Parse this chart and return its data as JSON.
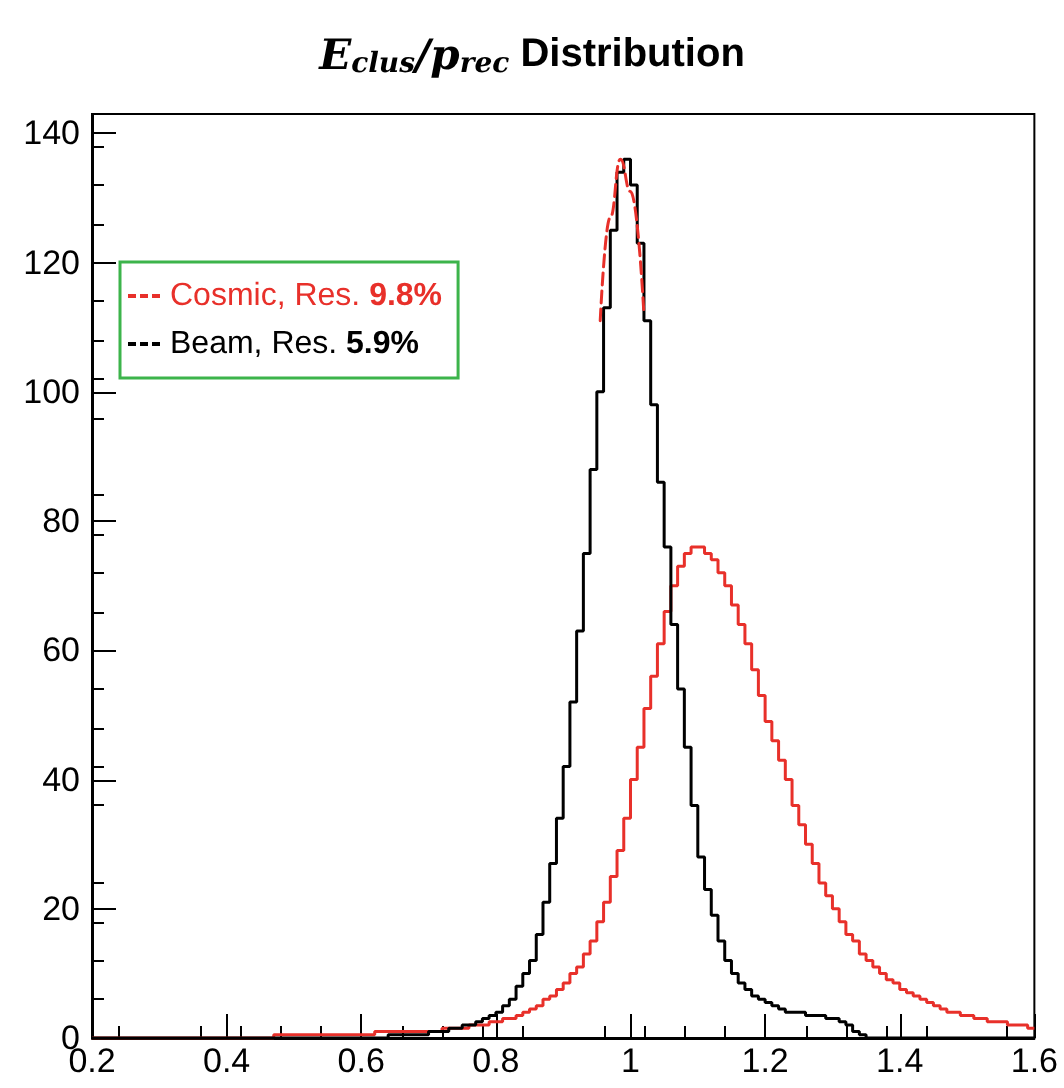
{
  "chart_data": {
    "type": "histogram",
    "title": "E$_{clus}$/p$_{rec}$ Distribution",
    "bins": [
      0.2,
      0.21,
      0.22,
      0.23,
      0.24,
      0.25,
      0.26,
      0.27,
      0.28,
      0.29,
      0.3,
      0.31,
      0.32,
      0.33,
      0.34,
      0.35,
      0.36,
      0.37,
      0.38,
      0.39,
      0.4,
      0.41,
      0.42,
      0.43,
      0.44,
      0.45,
      0.46,
      0.47,
      0.48,
      0.49,
      0.5,
      0.51,
      0.52,
      0.53,
      0.54,
      0.55,
      0.56,
      0.57,
      0.58,
      0.59,
      0.6,
      0.61,
      0.62,
      0.63,
      0.64,
      0.65,
      0.66,
      0.67,
      0.68,
      0.69,
      0.7,
      0.71,
      0.72,
      0.73,
      0.74,
      0.75,
      0.76,
      0.77,
      0.78,
      0.79,
      0.8,
      0.81,
      0.82,
      0.83,
      0.84,
      0.85,
      0.86,
      0.87,
      0.88,
      0.89,
      0.9,
      0.91,
      0.92,
      0.93,
      0.94,
      0.95,
      0.96,
      0.97,
      0.98,
      0.99,
      1.0,
      1.01,
      1.02,
      1.03,
      1.04,
      1.05,
      1.06,
      1.07,
      1.08,
      1.09,
      1.1,
      1.11,
      1.12,
      1.13,
      1.14,
      1.15,
      1.16,
      1.17,
      1.18,
      1.19,
      1.2,
      1.21,
      1.22,
      1.23,
      1.24,
      1.25,
      1.26,
      1.27,
      1.28,
      1.29,
      1.3,
      1.31,
      1.32,
      1.33,
      1.34,
      1.35,
      1.36,
      1.37,
      1.38,
      1.39,
      1.4,
      1.41,
      1.42,
      1.43,
      1.44,
      1.45,
      1.46,
      1.47,
      1.48,
      1.49,
      1.5,
      1.51,
      1.52,
      1.53,
      1.54,
      1.55,
      1.56,
      1.57,
      1.58,
      1.59,
      1.6
    ],
    "series": [
      {
        "name": "Cosmic, Res. 9.8%",
        "color": "#e8302a",
        "values": [
          0,
          0,
          0,
          0,
          0,
          0,
          0,
          0,
          0,
          0,
          0,
          0,
          0,
          0,
          0,
          0,
          0,
          0,
          0,
          0,
          0,
          0,
          0,
          0,
          0,
          0,
          0,
          0.5,
          0.5,
          0.5,
          0.5,
          0.5,
          0.5,
          0.5,
          0.5,
          0.5,
          0.5,
          0.5,
          0.5,
          0.5,
          0.5,
          0.5,
          1,
          1,
          1,
          1,
          1,
          1,
          1,
          1,
          1,
          1,
          1.5,
          1.5,
          1.5,
          1.5,
          2,
          2,
          2,
          2.5,
          2.5,
          3,
          3,
          3.5,
          4,
          4.5,
          5,
          6,
          6.5,
          7.5,
          8.5,
          10,
          11,
          13,
          15,
          18,
          21,
          25,
          29,
          34,
          40,
          45,
          51,
          56,
          61,
          66,
          70,
          73,
          75,
          76,
          76,
          75,
          74,
          72,
          70,
          67,
          64,
          61,
          57,
          53,
          49,
          46,
          43,
          40,
          36,
          33,
          30,
          27,
          24,
          22,
          20,
          18,
          16,
          15,
          13,
          12,
          11,
          10,
          9,
          8.5,
          7.5,
          7,
          6.5,
          6,
          5.5,
          5,
          4.5,
          4,
          4,
          3.5,
          3.5,
          3,
          3,
          2.5,
          2.5,
          2.5,
          2,
          2,
          2,
          1.5
        ]
      },
      {
        "name": "Beam, Res. 5.9%",
        "color": "#000000",
        "values": [
          0,
          0,
          0,
          0,
          0,
          0,
          0,
          0,
          0,
          0,
          0,
          0,
          0,
          0,
          0,
          0,
          0,
          0,
          0,
          0,
          0,
          0,
          0,
          0,
          0,
          0,
          0,
          0,
          0,
          0,
          0,
          0,
          0,
          0,
          0,
          0,
          0,
          0,
          0,
          0,
          0,
          0,
          0,
          0,
          0.5,
          0.5,
          0.5,
          0.5,
          0.5,
          0.5,
          1,
          1,
          1,
          1.5,
          1.5,
          2,
          2,
          2.5,
          3,
          3.5,
          4,
          5,
          6,
          8,
          10,
          12,
          16,
          21,
          27,
          34,
          42,
          52,
          63,
          75,
          88,
          100,
          113,
          125,
          134,
          136,
          132,
          123,
          111,
          98,
          86,
          76,
          64,
          54,
          45,
          36,
          28,
          23,
          19,
          15,
          12,
          10,
          8.5,
          7.5,
          6.5,
          6,
          5.5,
          5,
          4.5,
          4,
          4,
          4,
          3.5,
          3.5,
          3.5,
          3,
          3,
          2.5,
          2,
          1,
          0.5,
          0,
          0,
          0,
          0,
          0,
          0,
          0,
          0,
          0,
          0,
          0,
          0,
          0,
          0,
          0,
          0,
          0,
          0,
          0,
          0,
          0,
          0,
          0,
          0,
          0
        ]
      },
      {
        "type": "line",
        "color": "#e8302a",
        "line_style": "dashed",
        "x": [
          0.955,
          0.97,
          0.985,
          1.0,
          1.02
        ],
        "values": [
          111,
          127,
          136,
          131,
          112
        ]
      }
    ],
    "xlim": [
      0.2,
      1.6
    ],
    "xticks": [
      0.2,
      0.4,
      0.6,
      0.8,
      1,
      1.2,
      1.4,
      1.6
    ],
    "ylim": [
      0,
      143
    ],
    "yticks": [
      0,
      20,
      40,
      60,
      80,
      100,
      120,
      140
    ],
    "legend": "top left"
  }
}
